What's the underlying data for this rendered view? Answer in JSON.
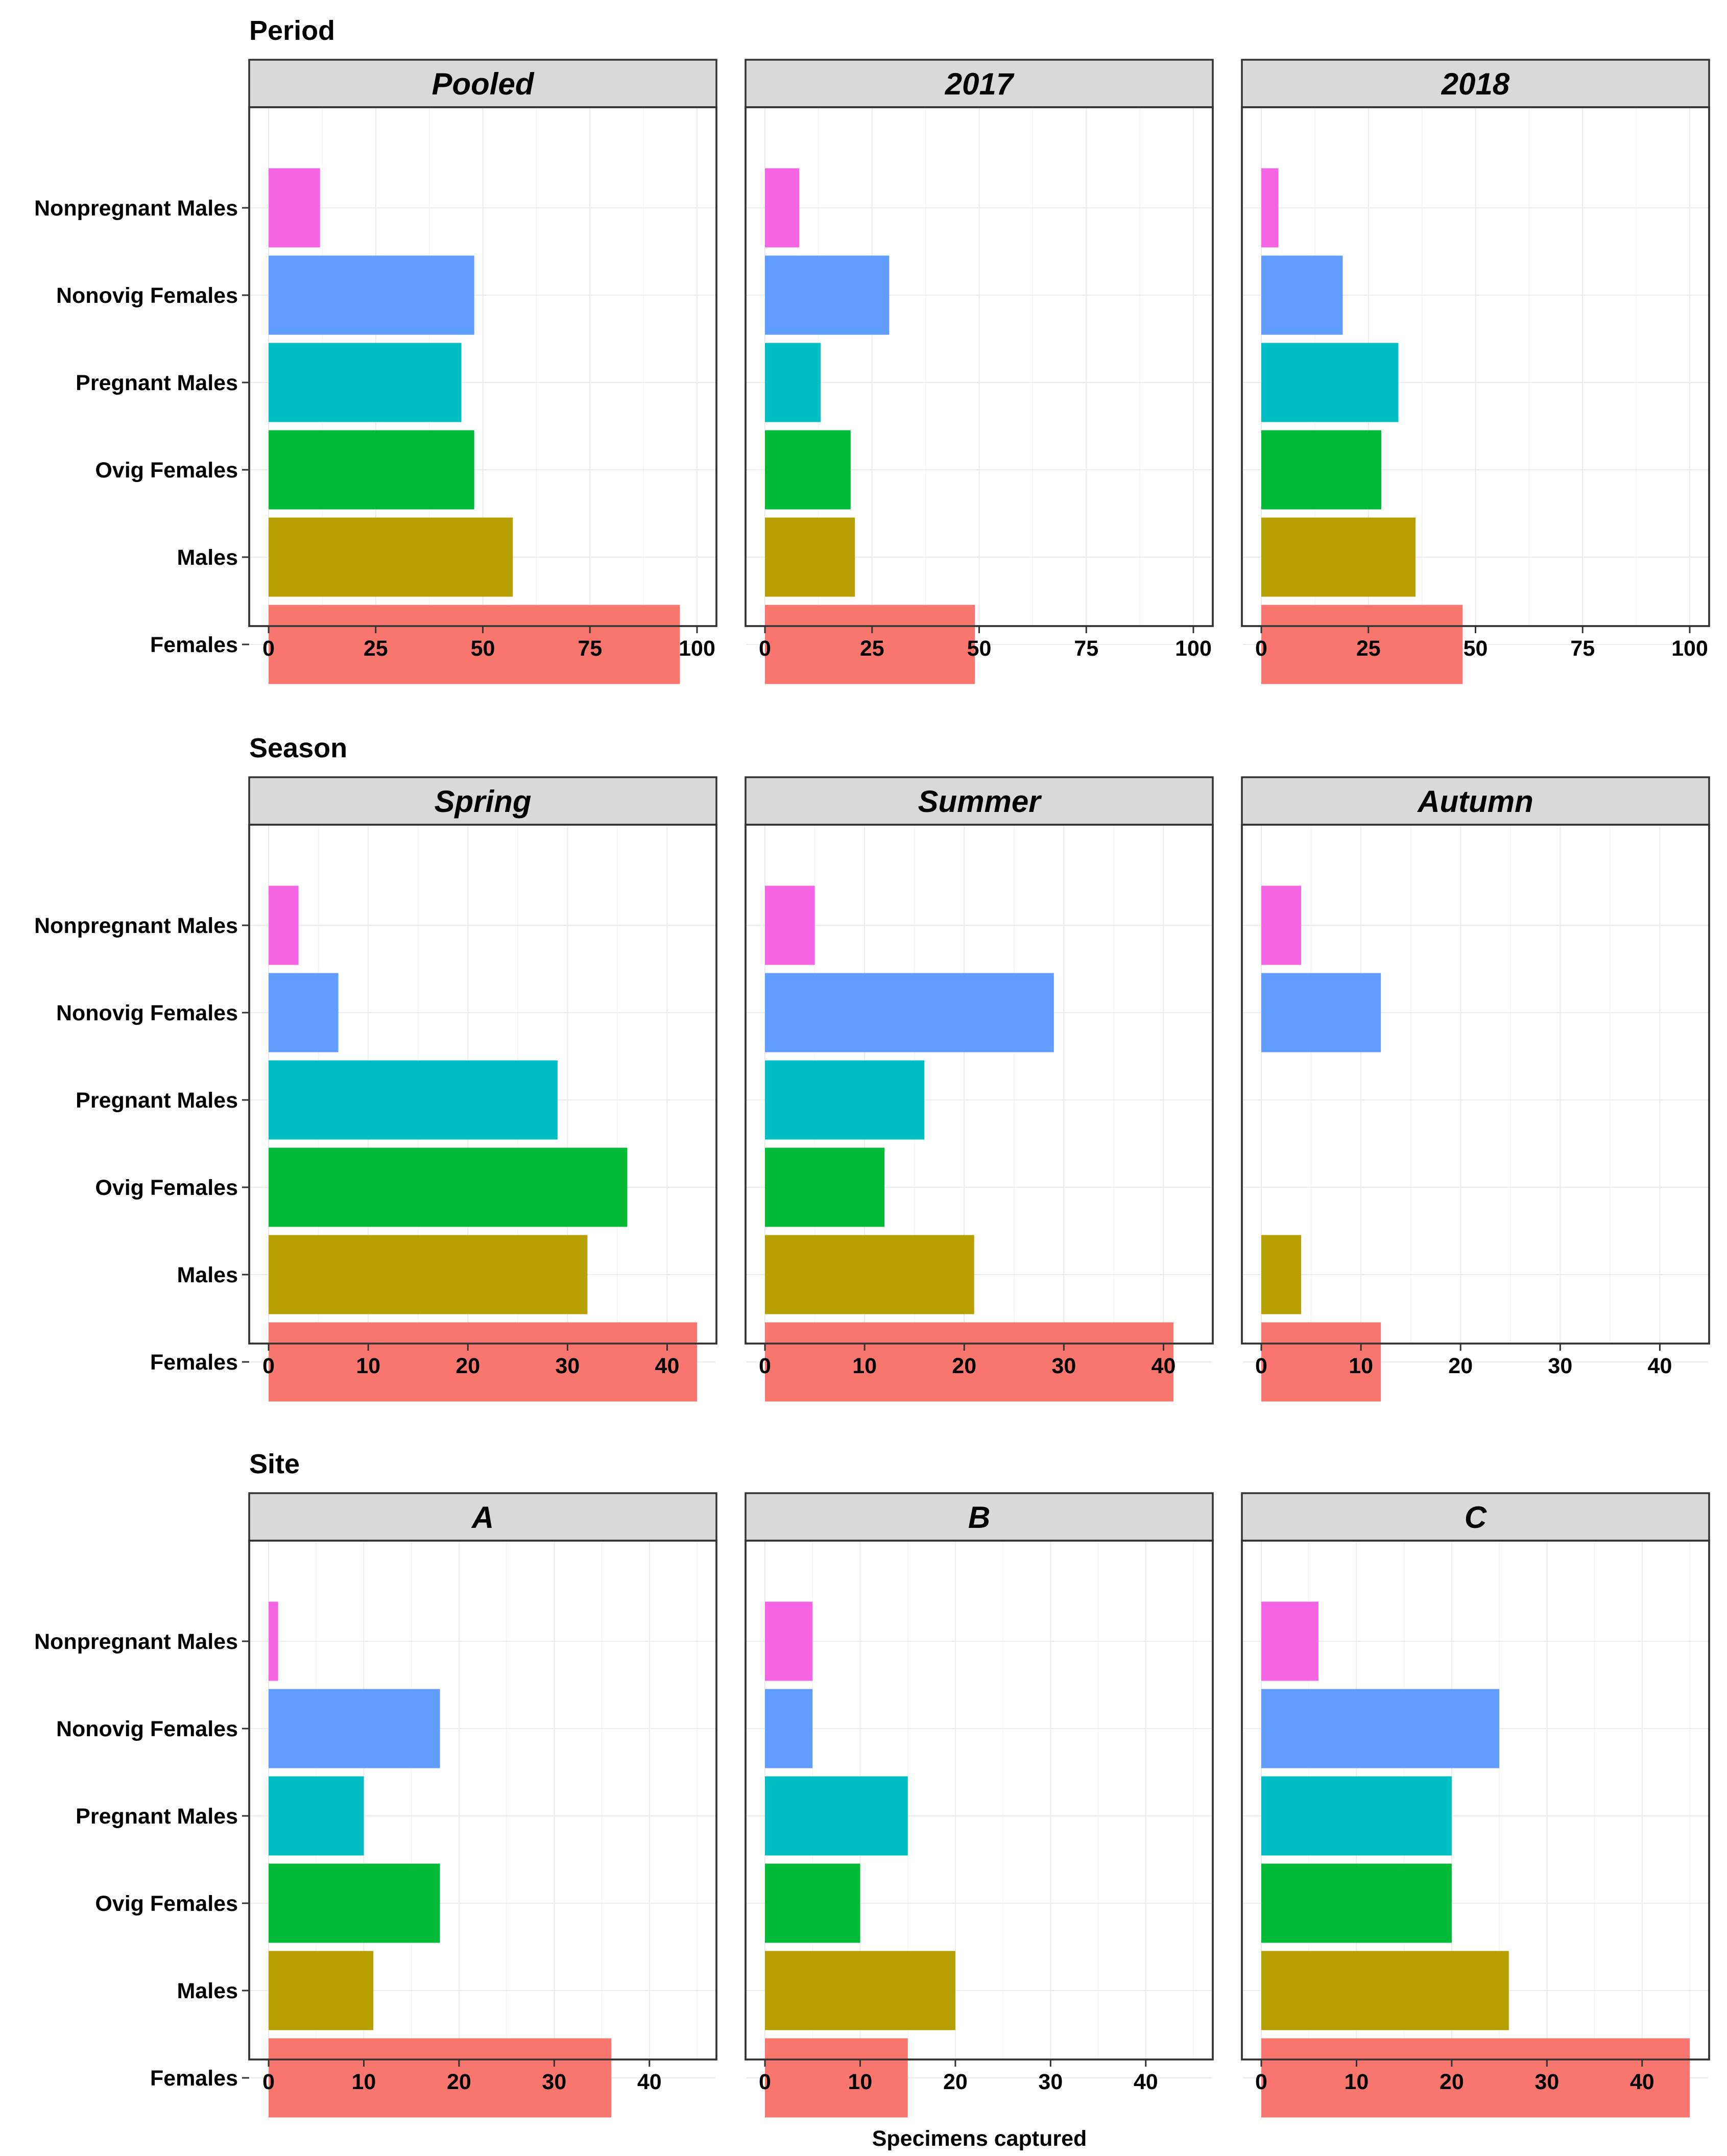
{
  "figure": {
    "xlabel": "Specimens captured"
  },
  "categories": [
    "Nonpregnant Males",
    "Nonovig Females",
    "Pregnant Males",
    "Ovig Females",
    "Males",
    "Females"
  ],
  "colors": {
    "Nonpregnant Males": "#F564E3",
    "Nonovig Females": "#619CFF",
    "Pregnant Males": "#00BFC4",
    "Ovig Females": "#00BA38",
    "Males": "#B79F00",
    "Females": "#F8766D"
  },
  "chart_data": [
    {
      "type": "bar",
      "group": "Period",
      "title": "Pooled",
      "xlim": [
        0,
        100
      ],
      "xticks": [
        0,
        25,
        50,
        75,
        100
      ],
      "categories": [
        "Nonpregnant Males",
        "Nonovig Females",
        "Pregnant Males",
        "Ovig Females",
        "Males",
        "Females"
      ],
      "values": [
        12,
        48,
        45,
        48,
        57,
        96
      ]
    },
    {
      "type": "bar",
      "group": "Period",
      "title": "2017",
      "xlim": [
        0,
        100
      ],
      "xticks": [
        0,
        25,
        50,
        75,
        100
      ],
      "categories": [
        "Nonpregnant Males",
        "Nonovig Females",
        "Pregnant Males",
        "Ovig Females",
        "Males",
        "Females"
      ],
      "values": [
        8,
        29,
        13,
        20,
        21,
        49
      ]
    },
    {
      "type": "bar",
      "group": "Period",
      "title": "2018",
      "xlim": [
        0,
        100
      ],
      "xticks": [
        0,
        25,
        50,
        75,
        100
      ],
      "categories": [
        "Nonpregnant Males",
        "Nonovig Females",
        "Pregnant Males",
        "Ovig Females",
        "Males",
        "Females"
      ],
      "values": [
        4,
        19,
        32,
        28,
        36,
        47
      ]
    },
    {
      "type": "bar",
      "group": "Season",
      "title": "Spring",
      "xlim": [
        0,
        43
      ],
      "xticks": [
        0,
        10,
        20,
        30,
        40
      ],
      "categories": [
        "Nonpregnant Males",
        "Nonovig Females",
        "Pregnant Males",
        "Ovig Females",
        "Males",
        "Females"
      ],
      "values": [
        3,
        7,
        29,
        36,
        32,
        43
      ]
    },
    {
      "type": "bar",
      "group": "Season",
      "title": "Summer",
      "xlim": [
        0,
        43
      ],
      "xticks": [
        0,
        10,
        20,
        30,
        40
      ],
      "categories": [
        "Nonpregnant Males",
        "Nonovig Females",
        "Pregnant Males",
        "Ovig Females",
        "Males",
        "Females"
      ],
      "values": [
        5,
        29,
        16,
        12,
        21,
        41
      ]
    },
    {
      "type": "bar",
      "group": "Season",
      "title": "Autumn",
      "xlim": [
        0,
        43
      ],
      "xticks": [
        0,
        10,
        20,
        30,
        40
      ],
      "categories": [
        "Nonpregnant Males",
        "Nonovig Females",
        "Pregnant Males",
        "Ovig Females",
        "Males",
        "Females"
      ],
      "values": [
        4,
        12,
        0,
        0,
        4,
        12
      ]
    },
    {
      "type": "bar",
      "group": "Site",
      "title": "A",
      "xlim": [
        0,
        45
      ],
      "xticks": [
        0,
        10,
        20,
        30,
        40
      ],
      "categories": [
        "Nonpregnant Males",
        "Nonovig Females",
        "Pregnant Males",
        "Ovig Females",
        "Males",
        "Females"
      ],
      "values": [
        1,
        18,
        10,
        18,
        11,
        36
      ]
    },
    {
      "type": "bar",
      "group": "Site",
      "title": "B",
      "xlim": [
        0,
        45
      ],
      "xticks": [
        0,
        10,
        20,
        30,
        40
      ],
      "categories": [
        "Nonpregnant Males",
        "Nonovig Females",
        "Pregnant Males",
        "Ovig Females",
        "Males",
        "Females"
      ],
      "values": [
        5,
        5,
        15,
        10,
        20,
        15
      ]
    },
    {
      "type": "bar",
      "group": "Site",
      "title": "C",
      "xlim": [
        0,
        45
      ],
      "xticks": [
        0,
        10,
        20,
        30,
        40
      ],
      "categories": [
        "Nonpregnant Males",
        "Nonovig Females",
        "Pregnant Males",
        "Ovig Females",
        "Males",
        "Females"
      ],
      "values": [
        6,
        25,
        20,
        20,
        26,
        45
      ]
    }
  ],
  "rows": [
    {
      "title": "Period"
    },
    {
      "title": "Season"
    },
    {
      "title": "Site"
    }
  ]
}
